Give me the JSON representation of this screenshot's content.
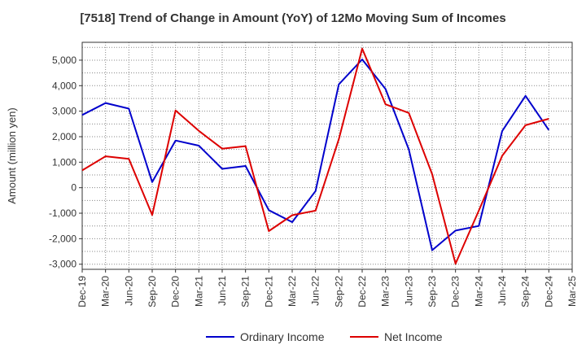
{
  "chart_data": {
    "type": "line",
    "title": "[7518]  Trend of Change in Amount (YoY) of 12Mo Moving Sum of Incomes",
    "xlabel": "",
    "ylabel": "Amount (million yen)",
    "ylim": [
      -3200,
      5700
    ],
    "yticks": [
      -3000,
      -2000,
      -1000,
      0,
      1000,
      2000,
      3000,
      4000,
      5000
    ],
    "ytick_labels": [
      "-3,000",
      "-2,000",
      "-1,000",
      "0",
      "1,000",
      "2,000",
      "3,000",
      "4,000",
      "5,000"
    ],
    "categories": [
      "Dec-19",
      "Mar-20",
      "Jun-20",
      "Sep-20",
      "Dec-20",
      "Mar-21",
      "Jun-21",
      "Sep-21",
      "Dec-21",
      "Mar-22",
      "Jun-22",
      "Sep-22",
      "Dec-22",
      "Mar-23",
      "Jun-23",
      "Sep-23",
      "Dec-23",
      "Mar-24",
      "Jun-24",
      "Sep-24",
      "Dec-24",
      "Mar-25"
    ],
    "grid": true,
    "legend_position": "bottom",
    "series": [
      {
        "name": "Ordinary Income",
        "color": "#0000cc",
        "values": [
          2850,
          3320,
          3100,
          220,
          1850,
          1650,
          740,
          850,
          -880,
          -1350,
          -130,
          4050,
          5030,
          3870,
          1500,
          -2450,
          -1680,
          -1500,
          2220,
          3600,
          2260,
          null
        ]
      },
      {
        "name": "Net Income",
        "color": "#dd0000",
        "values": [
          680,
          1230,
          1130,
          -1070,
          3030,
          2230,
          1530,
          1630,
          -1700,
          -1080,
          -900,
          1900,
          5450,
          3270,
          2930,
          530,
          -2980,
          -900,
          1250,
          2450,
          2700,
          null
        ]
      }
    ]
  }
}
